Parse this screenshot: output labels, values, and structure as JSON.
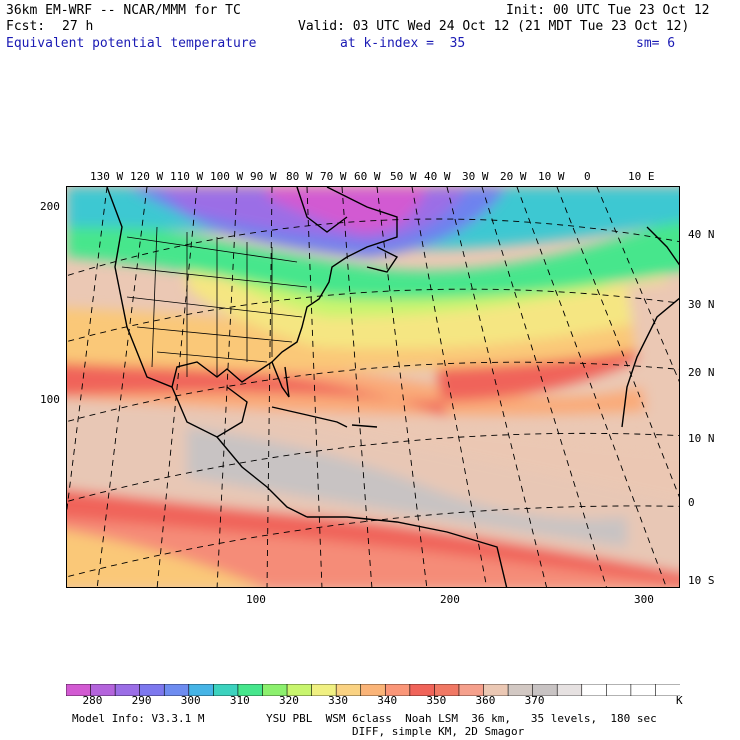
{
  "header": {
    "model_title": "36km EM-WRF -- NCAR/MMM for TC",
    "init": "Init: 00 UTC Tue 23 Oct 12",
    "fcst_label": "Fcst:",
    "fcst_value": "27 h",
    "valid": "Valid: 03 UTC Wed 24 Oct 12 (21 MDT Tue 23 Oct 12)",
    "field_name": "Equivalent potential temperature",
    "level": "at k-index =  35",
    "smoothing": "sm= 6"
  },
  "map": {
    "lon_labels": [
      "130 W",
      "120 W",
      "110 W",
      "100 W",
      "90 W",
      "80 W",
      "70 W",
      "60 W",
      "50 W",
      "40 W",
      "30 W",
      "20 W",
      "10 W",
      "0",
      "10 E"
    ],
    "lat_labels": [
      "40 N",
      "30 N",
      "20 N",
      "10 N",
      "0",
      "10 S"
    ],
    "grid_y_labels": [
      "200",
      "100"
    ],
    "grid_x_labels": [
      "100",
      "200",
      "300"
    ],
    "colors": {
      "magenta": "#d25ad2",
      "purple": "#9b6ee6",
      "blue": "#6e82ee",
      "teal": "#3cc8d2",
      "green": "#46e68c",
      "yellowgreen": "#c8f56e",
      "yellow": "#f5e682",
      "orange": "#fac878",
      "lightorange": "#faaa78",
      "red": "#f0645a",
      "salmon": "#f58c78",
      "tan": "#ebc8b4",
      "gray": "#c8c3c3"
    }
  },
  "colorbar": {
    "colors": [
      "#d25ad2",
      "#b464dc",
      "#9b6ee6",
      "#7d78ee",
      "#6e8cf0",
      "#46b4e6",
      "#3cd2be",
      "#46e68c",
      "#8cf06e",
      "#c8f56e",
      "#f0f082",
      "#fad282",
      "#fab478",
      "#fa9678",
      "#f0645a",
      "#f07864",
      "#f5a08c",
      "#ebc8b4",
      "#d2c8c3",
      "#c8c3c3",
      "#e6e1e1",
      "#ffffff",
      "#ffffff",
      "#ffffff",
      "#ffffff"
    ],
    "labels": [
      "280",
      "290",
      "300",
      "310",
      "320",
      "330",
      "340",
      "350",
      "360",
      "370"
    ],
    "unit": "K"
  },
  "footer": {
    "model_info": "Model Info: V3.3.1 M",
    "physics_line1": "YSU PBL  WSM 6class  Noah LSM  36 km,   35 levels,  180 sec",
    "physics_line2": "DIFF, simple KM, 2D Smagor"
  }
}
